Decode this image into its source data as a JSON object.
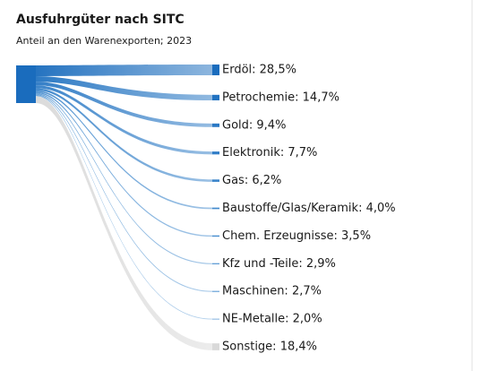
{
  "chart_data": {
    "type": "sankey",
    "title": "Ausfuhrgüter nach SITC",
    "subtitle": "Anteil an den Warenexporten; 2023",
    "values": [
      28.5,
      14.7,
      9.4,
      7.7,
      6.2,
      4.0,
      3.5,
      2.9,
      2.7,
      2.0,
      18.4
    ],
    "value_labels": [
      "Erdöl: 28,5%",
      "Petrochemie: 14,7%",
      "Gold: 9,4%",
      "Elektronik: 7,7%",
      "Gas: 6,2%",
      "Baustoffe/Glas/Keramik: 4,0%",
      "Chem. Erzeugnisse: 3,5%",
      "Kfz und -Teile: 2,9%",
      "Maschinen: 2,7%",
      "NE-Metalle: 2,0%",
      "Sonstige: 18,4%"
    ],
    "colors": [
      "#1a6cbd",
      "#2273c1",
      "#2a78c4",
      "#327ec7",
      "#3a84ca",
      "#438acd",
      "#4c90d0",
      "#5596d2",
      "#5e9cd5",
      "#67a2d8",
      "#d9d9d9"
    ]
  }
}
